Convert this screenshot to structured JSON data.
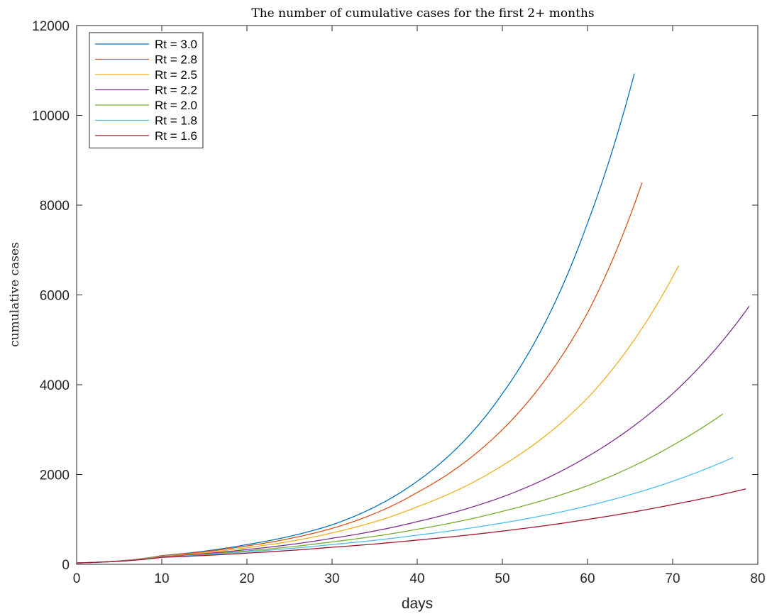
{
  "chart_data": {
    "type": "line",
    "title": "The number of cumulative cases for the first 2+ months",
    "xlabel": "days",
    "ylabel": "cumulative cases",
    "xlim": [
      0,
      80
    ],
    "ylim": [
      0,
      12000
    ],
    "xticks": [
      0,
      10,
      20,
      30,
      40,
      50,
      60,
      70,
      80
    ],
    "yticks": [
      0,
      2000,
      4000,
      6000,
      8000,
      10000,
      12000
    ],
    "grid": false,
    "legend_position": "top-left",
    "series": [
      {
        "name": "Rt = 3.0",
        "color": "#0072BD",
        "x": [
          0,
          10,
          20,
          30,
          40,
          50,
          60,
          65.5
        ],
        "y": [
          30,
          195,
          440,
          880,
          1850,
          3800,
          7600,
          10930
        ]
      },
      {
        "name": "Rt = 2.8",
        "color": "#D95319",
        "x": [
          0,
          10,
          20,
          30,
          40,
          50,
          60,
          66.4
        ],
        "y": [
          30,
          190,
          410,
          800,
          1600,
          3000,
          5600,
          8500
        ]
      },
      {
        "name": "Rt = 2.5",
        "color": "#EDB120",
        "x": [
          0,
          10,
          20,
          30,
          40,
          50,
          60,
          70.7
        ],
        "y": [
          30,
          180,
          370,
          700,
          1280,
          2200,
          3700,
          6650
        ]
      },
      {
        "name": "Rt = 2.2",
        "color": "#7E2F8E",
        "x": [
          0,
          10,
          20,
          30,
          40,
          50,
          60,
          70,
          79
        ],
        "y": [
          30,
          170,
          330,
          580,
          950,
          1500,
          2400,
          3800,
          5750
        ]
      },
      {
        "name": "Rt = 2.0",
        "color": "#77AC30",
        "x": [
          0,
          10,
          20,
          30,
          40,
          50,
          60,
          70,
          75.9
        ],
        "y": [
          30,
          165,
          300,
          500,
          780,
          1180,
          1750,
          2650,
          3350
        ]
      },
      {
        "name": "Rt = 1.8",
        "color": "#4DBEEE",
        "x": [
          0,
          10,
          20,
          30,
          40,
          50,
          60,
          70,
          77.1
        ],
        "y": [
          30,
          160,
          280,
          440,
          650,
          920,
          1300,
          1850,
          2380
        ]
      },
      {
        "name": "Rt = 1.6",
        "color": "#A2142F",
        "x": [
          0,
          10,
          20,
          30,
          40,
          50,
          60,
          70,
          78.6
        ],
        "y": [
          30,
          155,
          250,
          380,
          540,
          740,
          1000,
          1330,
          1680
        ]
      }
    ]
  }
}
